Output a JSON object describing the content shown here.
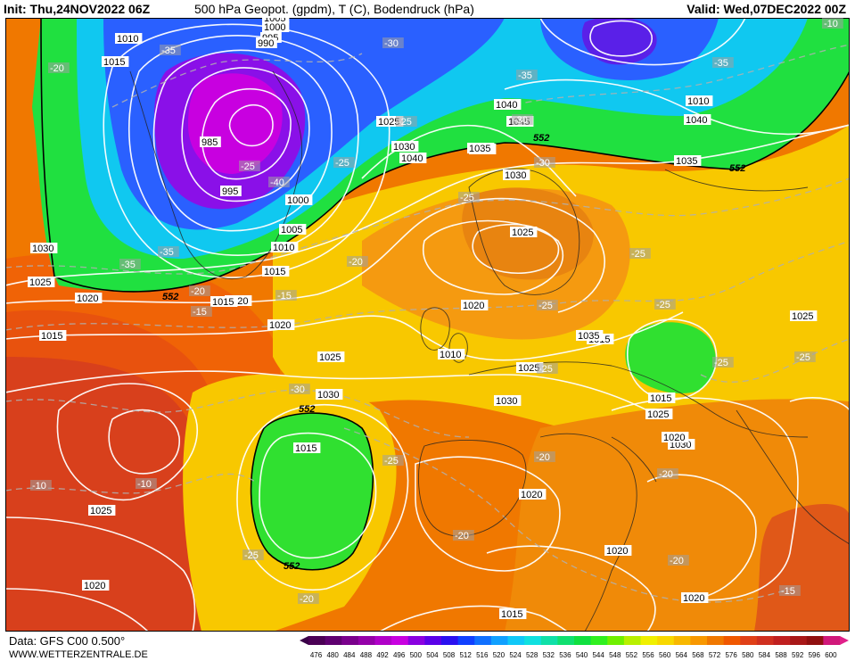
{
  "header": {
    "init": "Init: Thu,24NOV2022 06Z",
    "title": "500 hPa Geopot. (gpdm), T (C), Bodendruck (hPa)",
    "valid": "Valid: Wed,07DEC2022 00Z"
  },
  "footer": {
    "source": "Data: GFS C00 0.500°",
    "website": "WWW.WETTERZENTRALE.DE"
  },
  "legend": {
    "values": [
      476,
      480,
      484,
      488,
      492,
      496,
      500,
      504,
      508,
      512,
      516,
      520,
      524,
      528,
      532,
      536,
      540,
      544,
      548,
      552,
      556,
      560,
      564,
      568,
      572,
      576,
      580,
      584,
      588,
      592,
      596,
      600
    ],
    "colors": [
      "#4b0055",
      "#5f0070",
      "#7a008c",
      "#9400a8",
      "#b000c8",
      "#c800e0",
      "#8a00e0",
      "#5a00e8",
      "#2a10f0",
      "#1040ff",
      "#1070ff",
      "#10a0ff",
      "#10c8f8",
      "#10e0e0",
      "#10e0a8",
      "#10e070",
      "#10e040",
      "#30f020",
      "#70f000",
      "#b8f000",
      "#f0f000",
      "#f8d800",
      "#f8b800",
      "#f89800",
      "#f07800",
      "#f05800",
      "#e04018",
      "#d03020",
      "#c02020",
      "#a81818",
      "#901010",
      "#d0187a"
    ]
  },
  "map": {
    "pressure_labels": [
      "1010",
      "1015",
      "1005",
      "1000",
      "995",
      "990",
      "985",
      "995",
      "1000",
      "1005",
      "1010",
      "1015",
      "1020",
      "1025",
      "1030",
      "1035",
      "1040",
      "1045",
      "1040",
      "1035",
      "1030",
      "1025",
      "1020",
      "1015",
      "1010",
      "1025",
      "1030",
      "1020",
      "1015",
      "1010",
      "1040",
      "1035",
      "1030",
      "1025",
      "1020",
      "1015",
      "1025",
      "1020",
      "1015",
      "1030",
      "1035",
      "1025",
      "1030",
      "1020",
      "1025",
      "1020",
      "1015",
      "1020",
      "1025",
      "1015",
      "1020"
    ],
    "temp_labels": [
      "-35",
      "-30",
      "-20",
      "-35",
      "-25",
      "-40",
      "-25",
      "-25",
      "-30",
      "-35",
      "-35",
      "-30",
      "-35",
      "-20",
      "-25",
      "-15",
      "-20",
      "-15",
      "-25",
      "-25",
      "-25",
      "-25",
      "-25",
      "-30",
      "-25",
      "-20",
      "-20",
      "-25",
      "-20",
      "-10",
      "-10",
      "-25",
      "-20",
      "-20",
      "-15",
      "-10",
      "-20",
      "-35"
    ],
    "contour_552_label": "552"
  }
}
